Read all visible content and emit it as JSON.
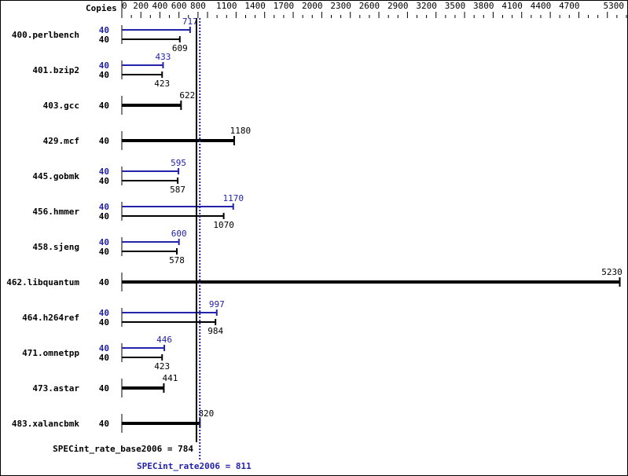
{
  "chart_data": {
    "type": "bar",
    "orientation": "horizontal",
    "copies_label": "Copies",
    "xlim": [
      0,
      5300
    ],
    "tick_labels": [
      "0",
      "200",
      "400",
      "600",
      "800",
      "1100",
      "1400",
      "1700",
      "2000",
      "2300",
      "2600",
      "2900",
      "3200",
      "3500",
      "3800",
      "4100",
      "4400",
      "4700",
      "5300"
    ],
    "colors": {
      "peak": "#2222aa",
      "base": "#000000"
    },
    "benchmarks": [
      {
        "name": "400.perlbench",
        "peak_copies": "40",
        "peak": 717,
        "base_copies": "40",
        "base": 609
      },
      {
        "name": "401.bzip2",
        "peak_copies": "40",
        "peak": 433,
        "base_copies": "40",
        "base": 423
      },
      {
        "name": "403.gcc",
        "base_copies": "40",
        "base": 622
      },
      {
        "name": "429.mcf",
        "base_copies": "40",
        "base": 1180
      },
      {
        "name": "445.gobmk",
        "peak_copies": "40",
        "peak": 595,
        "base_copies": "40",
        "base": 587
      },
      {
        "name": "456.hmmer",
        "peak_copies": "40",
        "peak": 1170,
        "base_copies": "40",
        "base": 1070
      },
      {
        "name": "458.sjeng",
        "peak_copies": "40",
        "peak": 600,
        "base_copies": "40",
        "base": 578
      },
      {
        "name": "462.libquantum",
        "base_copies": "40",
        "base": 5230
      },
      {
        "name": "464.h264ref",
        "peak_copies": "40",
        "peak": 997,
        "base_copies": "40",
        "base": 984
      },
      {
        "name": "471.omnetpp",
        "peak_copies": "40",
        "peak": 446,
        "base_copies": "40",
        "base": 423
      },
      {
        "name": "473.astar",
        "base_copies": "40",
        "base": 441
      },
      {
        "name": "483.xalancbmk",
        "base_copies": "40",
        "base": 820
      }
    ],
    "base_summary": {
      "label": "SPECint_rate_base2006 = 784",
      "value": 784
    },
    "peak_summary": {
      "label": "SPECint_rate2006 = 811",
      "value": 811
    }
  }
}
